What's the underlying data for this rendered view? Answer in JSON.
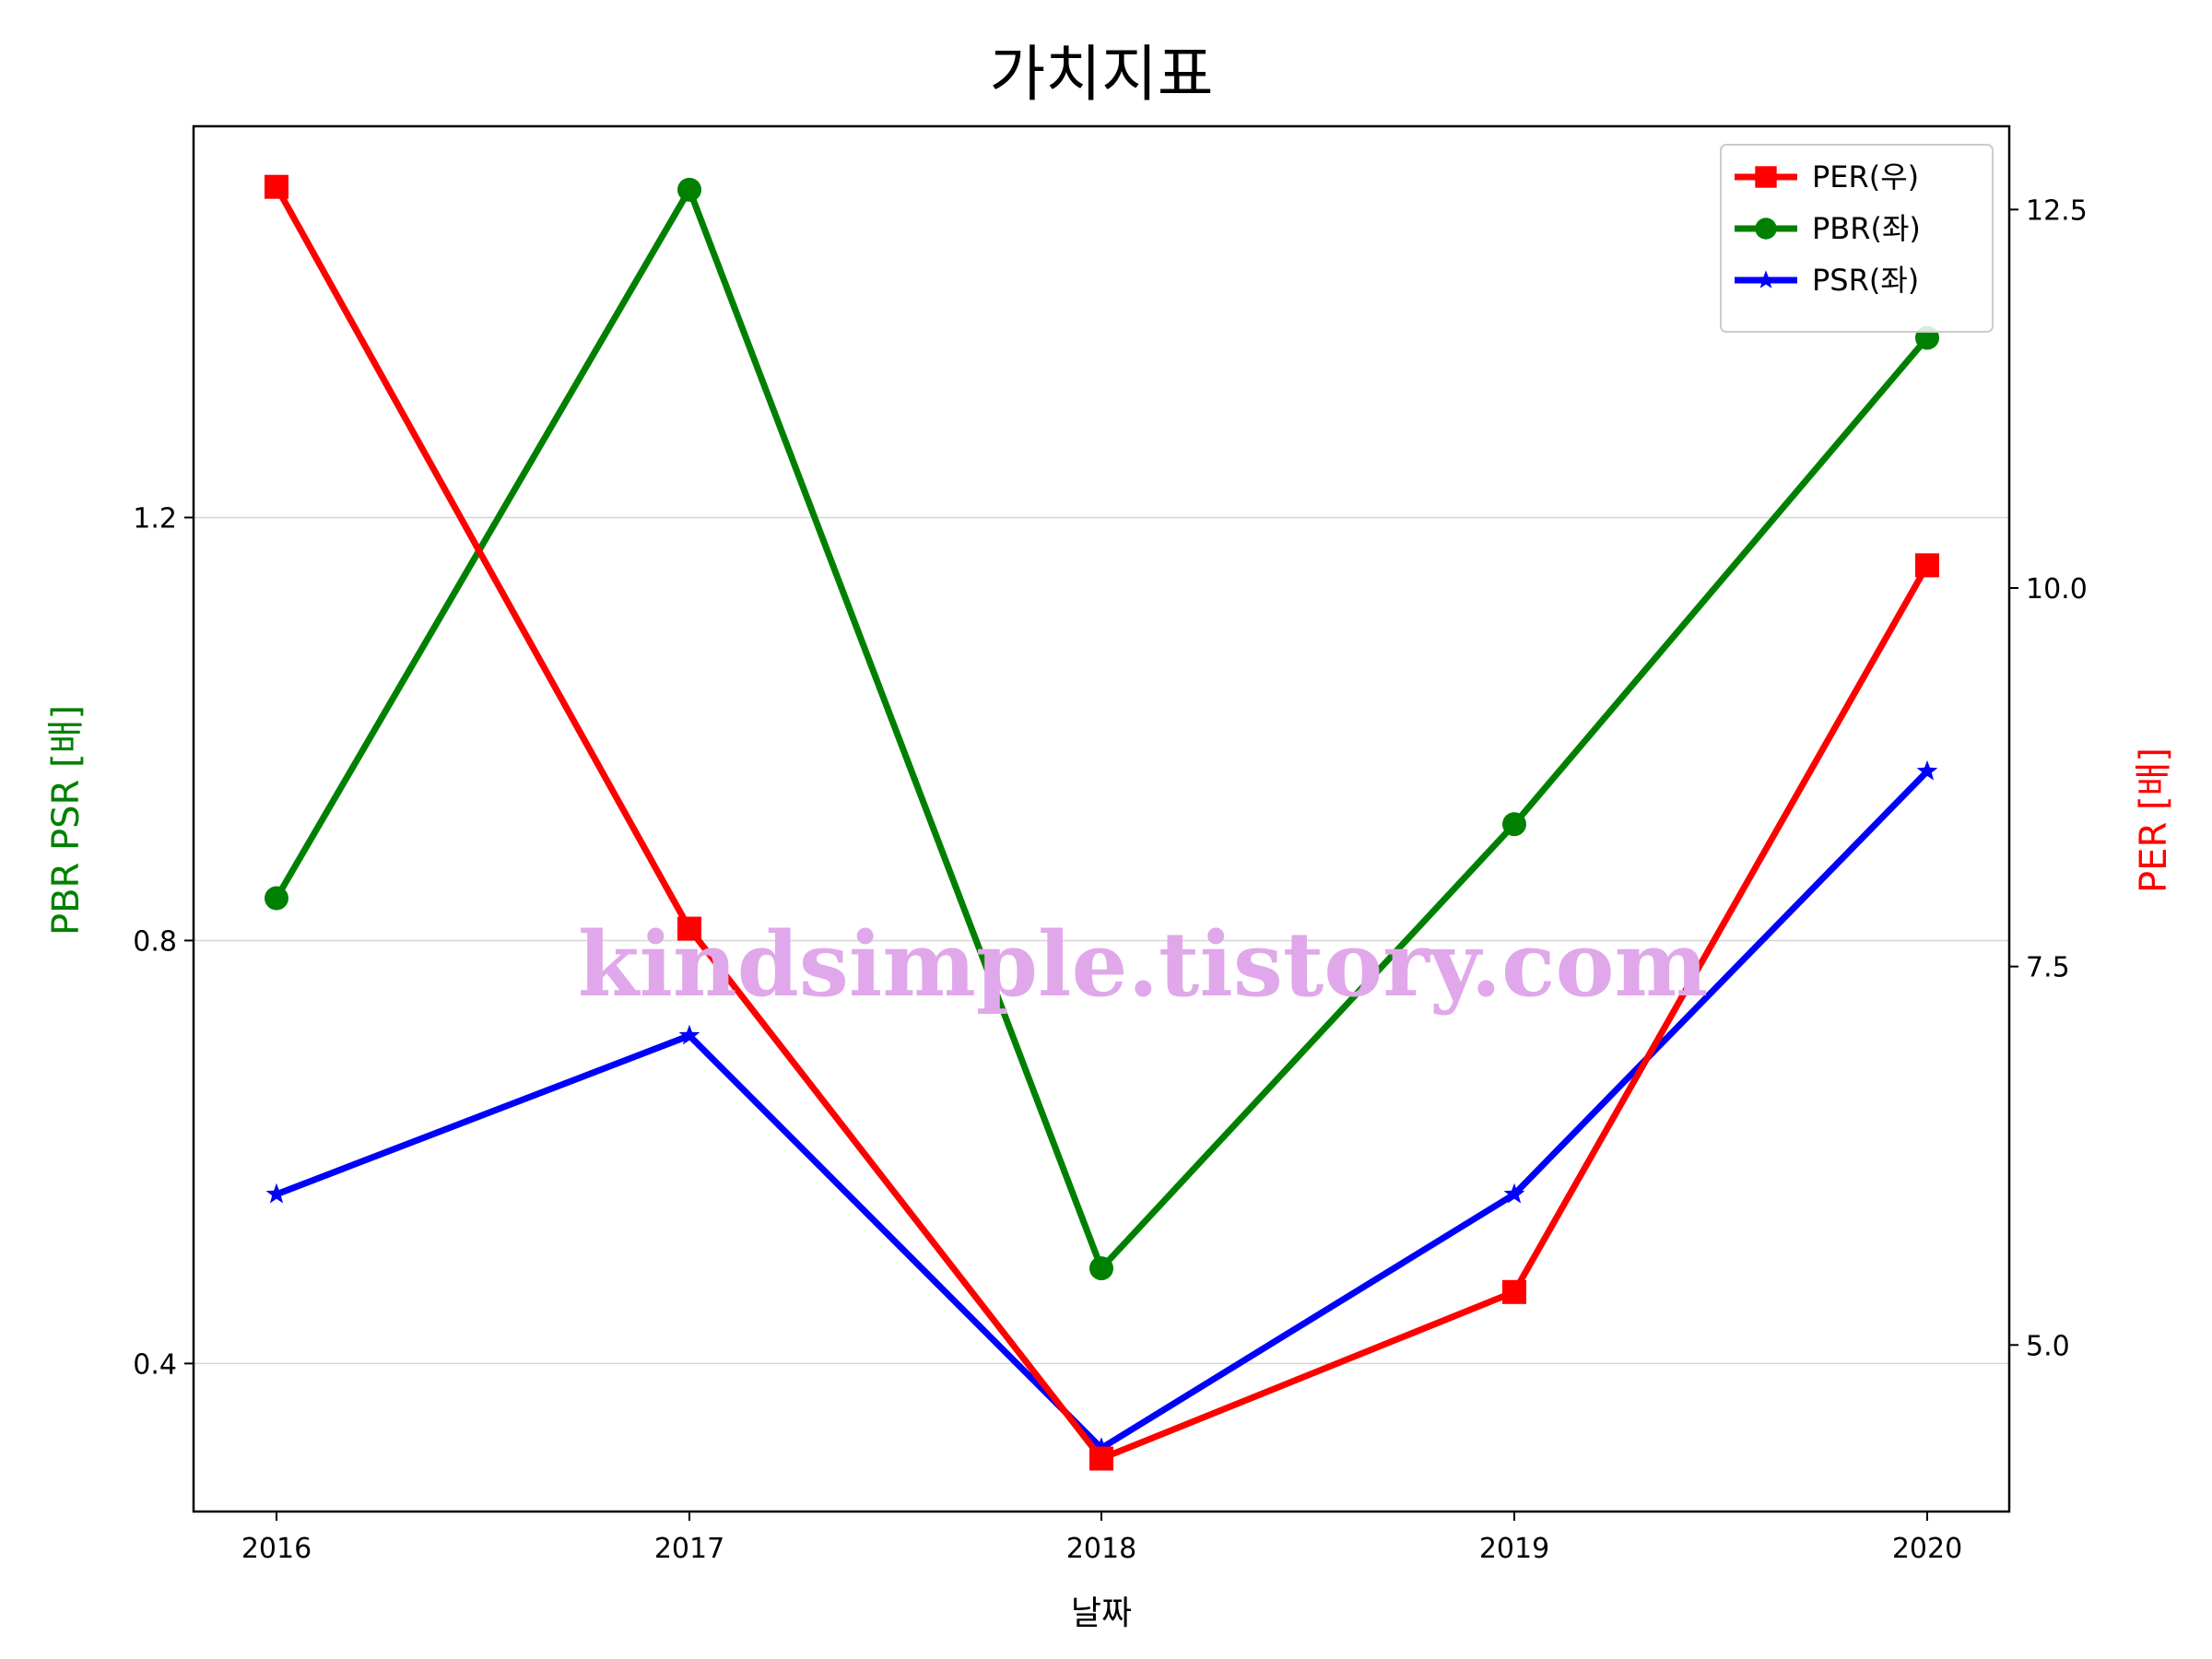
{
  "chart_data": {
    "type": "line",
    "title": "가치지표",
    "xlabel": "날짜",
    "ylabel_left": "PBR PSR [배]",
    "ylabel_right": "PER [배]",
    "categories": [
      "2016",
      "2017",
      "2018",
      "2019",
      "2020"
    ],
    "ylim_left": [
      0.26,
      1.57
    ],
    "ylim_right": [
      3.9,
      13.05
    ],
    "yticks_left": [
      "0.4",
      "0.8",
      "1.2"
    ],
    "yticks_right": [
      "5.0",
      "7.5",
      "10.0",
      "12.5"
    ],
    "grid": "horizontal (left axis)",
    "legend_position": "top-right",
    "series": [
      {
        "name": "PER(우)",
        "axis": "right",
        "marker": "square",
        "color": "#ff0000",
        "values": [
          12.65,
          7.75,
          4.25,
          5.35,
          10.15
        ]
      },
      {
        "name": "PBR(좌)",
        "axis": "left",
        "marker": "circle",
        "color": "#008000",
        "values": [
          0.84,
          1.51,
          0.49,
          0.91,
          1.37
        ]
      },
      {
        "name": "PSR(좌)",
        "axis": "left",
        "marker": "star",
        "color": "#0000ff",
        "values": [
          0.56,
          0.71,
          0.32,
          0.56,
          0.96
        ]
      }
    ],
    "watermark": "kindsimple.tistory.com"
  },
  "colors": {
    "left_axis_title": "#008000",
    "right_axis_title": "#ff0000"
  }
}
